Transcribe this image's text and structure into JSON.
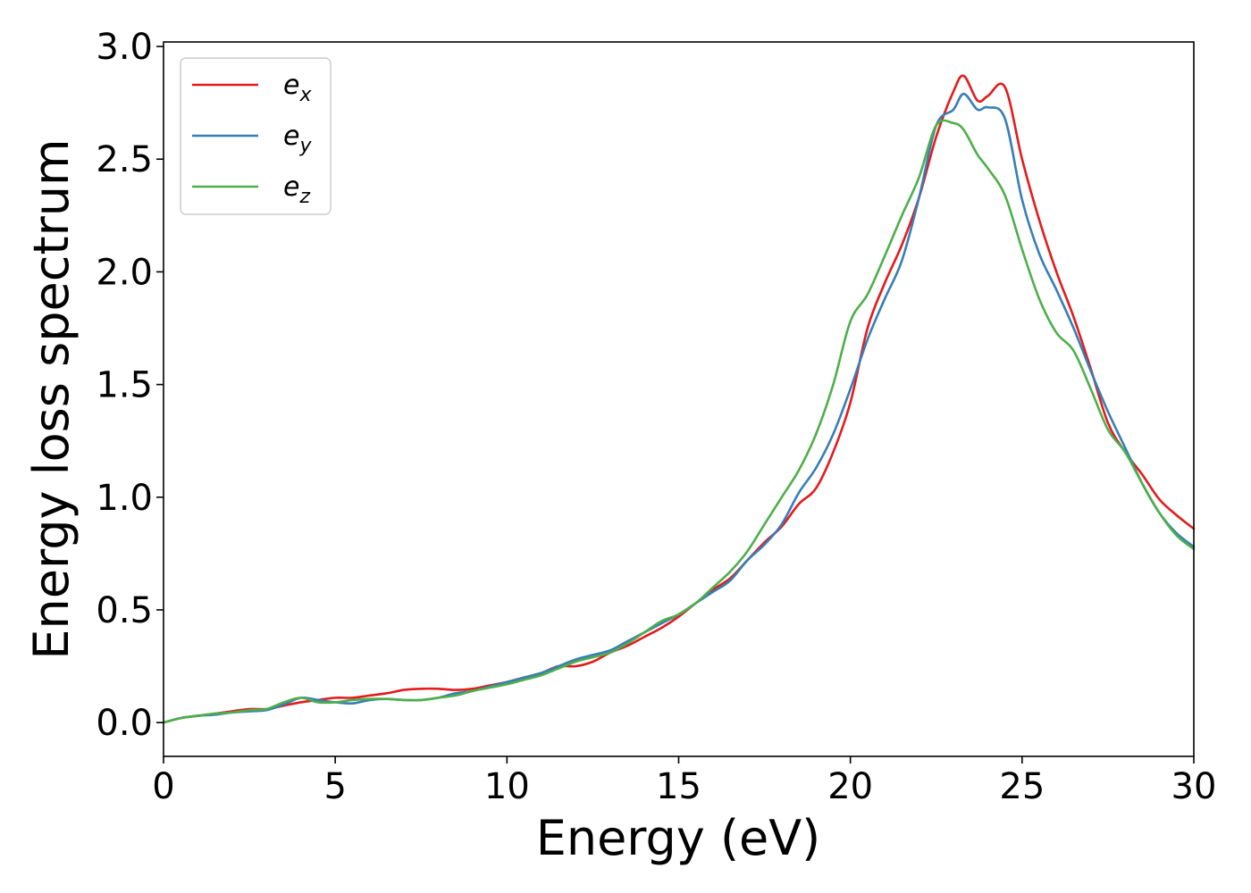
{
  "chart_data": {
    "type": "line",
    "title": "",
    "xlabel": "Energy (eV)",
    "ylabel": "Energy loss spectrum",
    "xlim": [
      0,
      30
    ],
    "ylim": [
      -0.15,
      3.02
    ],
    "xticks": [
      0,
      5,
      10,
      15,
      20,
      25,
      30
    ],
    "yticks": [
      0.0,
      0.5,
      1.0,
      1.5,
      2.0,
      2.5,
      3.0
    ],
    "xtick_labels": [
      "0",
      "5",
      "10",
      "15",
      "20",
      "25",
      "30"
    ],
    "ytick_labels": [
      "0.0",
      "0.5",
      "1.0",
      "1.5",
      "2.0",
      "2.5",
      "3.0"
    ],
    "grid": false,
    "legend_position": "top-left",
    "series": [
      {
        "name": "e",
        "subscript": "x",
        "color": "#e41a1c",
        "x": [
          0,
          0.5,
          1,
          1.5,
          2,
          2.5,
          3,
          3.5,
          4,
          4.5,
          5,
          5.5,
          6,
          6.5,
          7,
          7.5,
          8,
          8.5,
          9,
          9.5,
          10,
          10.5,
          11,
          11.5,
          12,
          12.5,
          13,
          13.5,
          14,
          14.5,
          15,
          15.5,
          16,
          16.5,
          17,
          17.5,
          18,
          18.5,
          19,
          19.5,
          20,
          20.5,
          21,
          21.5,
          22,
          22.5,
          23,
          23.3,
          23.7,
          24,
          24.5,
          25,
          25.5,
          26,
          26.5,
          27,
          27.5,
          28,
          28.5,
          29,
          29.5,
          30
        ],
        "values": [
          0.0,
          0.02,
          0.03,
          0.04,
          0.05,
          0.06,
          0.06,
          0.075,
          0.09,
          0.1,
          0.11,
          0.11,
          0.12,
          0.13,
          0.145,
          0.15,
          0.15,
          0.145,
          0.15,
          0.165,
          0.18,
          0.2,
          0.22,
          0.25,
          0.25,
          0.27,
          0.31,
          0.34,
          0.38,
          0.42,
          0.47,
          0.53,
          0.59,
          0.64,
          0.72,
          0.8,
          0.87,
          0.97,
          1.04,
          1.2,
          1.42,
          1.75,
          1.95,
          2.12,
          2.33,
          2.6,
          2.8,
          2.87,
          2.76,
          2.78,
          2.82,
          2.5,
          2.23,
          2.0,
          1.8,
          1.57,
          1.33,
          1.2,
          1.1,
          0.99,
          0.92,
          0.86
        ]
      },
      {
        "name": "e",
        "subscript": "y",
        "color": "#377eb8",
        "x": [
          0,
          0.5,
          1,
          1.5,
          2,
          2.5,
          3,
          3.5,
          4,
          4.5,
          5,
          5.5,
          6,
          6.5,
          7,
          7.5,
          8,
          8.5,
          9,
          9.5,
          10,
          10.5,
          11,
          11.5,
          12,
          12.5,
          13,
          13.5,
          14,
          14.5,
          15,
          15.5,
          16,
          16.5,
          17,
          17.5,
          18,
          18.5,
          19,
          19.5,
          20,
          20.5,
          21,
          21.5,
          22,
          22.5,
          23,
          23.3,
          23.7,
          24,
          24.5,
          25,
          25.5,
          26,
          26.5,
          27,
          27.5,
          28,
          28.5,
          29,
          29.5,
          30
        ],
        "values": [
          0.0,
          0.02,
          0.03,
          0.035,
          0.045,
          0.05,
          0.055,
          0.08,
          0.11,
          0.1,
          0.09,
          0.085,
          0.1,
          0.105,
          0.1,
          0.1,
          0.11,
          0.13,
          0.14,
          0.16,
          0.18,
          0.2,
          0.22,
          0.25,
          0.28,
          0.3,
          0.32,
          0.36,
          0.4,
          0.44,
          0.48,
          0.53,
          0.58,
          0.63,
          0.72,
          0.79,
          0.88,
          1.02,
          1.13,
          1.28,
          1.48,
          1.7,
          1.88,
          2.05,
          2.33,
          2.65,
          2.72,
          2.79,
          2.72,
          2.73,
          2.68,
          2.32,
          2.08,
          1.92,
          1.75,
          1.56,
          1.38,
          1.22,
          1.06,
          0.93,
          0.84,
          0.78
        ]
      },
      {
        "name": "e",
        "subscript": "z",
        "color": "#4daf4a",
        "x": [
          0,
          0.5,
          1,
          1.5,
          2,
          2.5,
          3,
          3.5,
          4,
          4.5,
          5,
          5.5,
          6,
          6.5,
          7,
          7.5,
          8,
          8.5,
          9,
          9.5,
          10,
          10.5,
          11,
          11.5,
          12,
          12.5,
          13,
          13.5,
          14,
          14.5,
          15,
          15.5,
          16,
          16.5,
          17,
          17.5,
          18,
          18.5,
          19,
          19.5,
          20,
          20.5,
          21,
          21.5,
          22,
          22.5,
          23,
          23.3,
          23.7,
          24,
          24.5,
          25,
          25.5,
          26,
          26.5,
          27,
          27.5,
          28,
          28.5,
          29,
          29.5,
          30
        ],
        "values": [
          0.0,
          0.02,
          0.03,
          0.04,
          0.045,
          0.055,
          0.06,
          0.09,
          0.11,
          0.09,
          0.09,
          0.1,
          0.105,
          0.105,
          0.1,
          0.1,
          0.11,
          0.12,
          0.14,
          0.155,
          0.17,
          0.19,
          0.21,
          0.24,
          0.27,
          0.29,
          0.31,
          0.35,
          0.4,
          0.45,
          0.48,
          0.53,
          0.6,
          0.67,
          0.76,
          0.88,
          1.0,
          1.12,
          1.28,
          1.5,
          1.78,
          1.9,
          2.07,
          2.25,
          2.42,
          2.65,
          2.66,
          2.63,
          2.52,
          2.46,
          2.34,
          2.1,
          1.88,
          1.73,
          1.65,
          1.48,
          1.3,
          1.2,
          1.06,
          0.93,
          0.83,
          0.77
        ]
      }
    ]
  }
}
